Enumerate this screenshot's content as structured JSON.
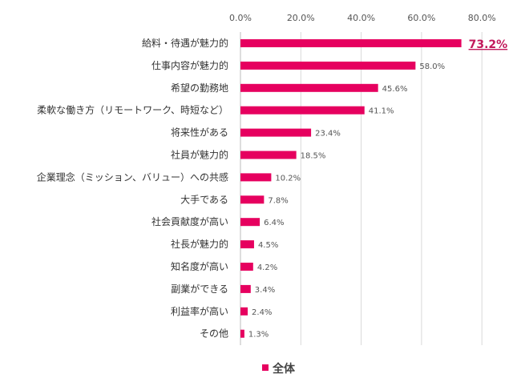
{
  "chart_data": {
    "type": "bar",
    "orientation": "horizontal",
    "title": "",
    "xlabel": "",
    "ylabel": "",
    "xlim": [
      0,
      80
    ],
    "x_ticks": [
      "0.0%",
      "20.0%",
      "40.0%",
      "60.0%",
      "80.0%"
    ],
    "x_tick_values": [
      0,
      20,
      40,
      60,
      80
    ],
    "axis_position": "top",
    "grid": true,
    "legend_position": "bottom",
    "categories": [
      "給料・待遇が魅力的",
      "仕事内容が魅力的",
      "希望の勤務地",
      "柔軟な働き方（リモートワーク、時短など）",
      "将来性がある",
      "社員が魅力的",
      "企業理念（ミッション、バリュー）への共感",
      "大手である",
      "社会貢献度が高い",
      "社長が魅力的",
      "知名度が高い",
      "副業ができる",
      "利益率が高い",
      "その他"
    ],
    "series": [
      {
        "name": "全体",
        "color": "#e6005f",
        "values": [
          73.2,
          58.0,
          45.6,
          41.1,
          23.4,
          18.5,
          10.2,
          7.8,
          6.4,
          4.5,
          4.2,
          3.4,
          2.4,
          1.3
        ],
        "labels": [
          "73.2%",
          "58.0%",
          "45.6%",
          "41.1%",
          "23.4%",
          "18.5%",
          "10.2%",
          "7.8%",
          "6.4%",
          "4.5%",
          "4.2%",
          "3.4%",
          "2.4%",
          "1.3%"
        ]
      }
    ],
    "highlight_index": 0,
    "highlight_color": "#c2185b"
  }
}
